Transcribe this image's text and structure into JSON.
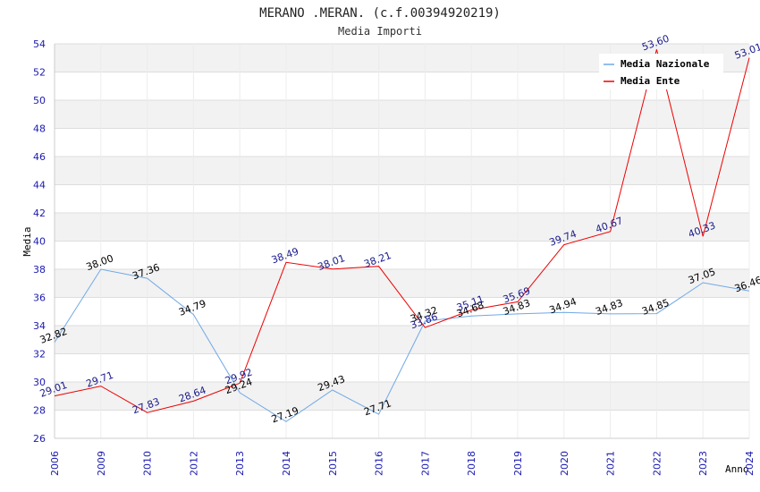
{
  "chart_data": {
    "type": "line",
    "title": "MERANO .MERAN. (c.f.00394920219)",
    "subtitle": "Media Importi",
    "xlabel": "Anno",
    "ylabel": "Media",
    "ylim": [
      26,
      54
    ],
    "ystep": 2,
    "categories": [
      "2006",
      "2009",
      "2010",
      "2012",
      "2013",
      "2014",
      "2015",
      "2016",
      "2017",
      "2018",
      "2019",
      "2020",
      "2021",
      "2022",
      "2023",
      "2024"
    ],
    "series": [
      {
        "name": "Media Nazionale",
        "color": "#6fa8e6",
        "label_color": "#000000",
        "values": [
          32.82,
          38.0,
          37.36,
          34.79,
          29.24,
          27.19,
          29.43,
          27.71,
          34.32,
          34.68,
          34.83,
          34.94,
          34.83,
          34.85,
          37.05,
          36.46
        ],
        "labels": [
          "32.82",
          "38.00",
          "37.36",
          "34.79",
          "29.24",
          "27.19",
          "29.43",
          "27.71",
          "34.32",
          "34.68",
          "34.83",
          "34.94",
          "34.83",
          "34.85",
          "37.05",
          "36.46"
        ]
      },
      {
        "name": "Media Ente",
        "color": "#ee0000",
        "label_color": "#1a1a8c",
        "values": [
          29.01,
          29.71,
          27.83,
          28.64,
          29.92,
          38.49,
          38.01,
          38.21,
          33.86,
          35.11,
          35.69,
          39.74,
          40.67,
          53.6,
          40.33,
          53.01
        ],
        "labels": [
          "29.01",
          "29.71",
          "27.83",
          "28.64",
          "29.92",
          "38.49",
          "38.01",
          "38.21",
          "33.86",
          "35.11",
          "35.69",
          "39.74",
          "40.67",
          "53.60",
          "40.33",
          "53.01"
        ]
      }
    ],
    "legend": "top-right",
    "grid": true
  }
}
